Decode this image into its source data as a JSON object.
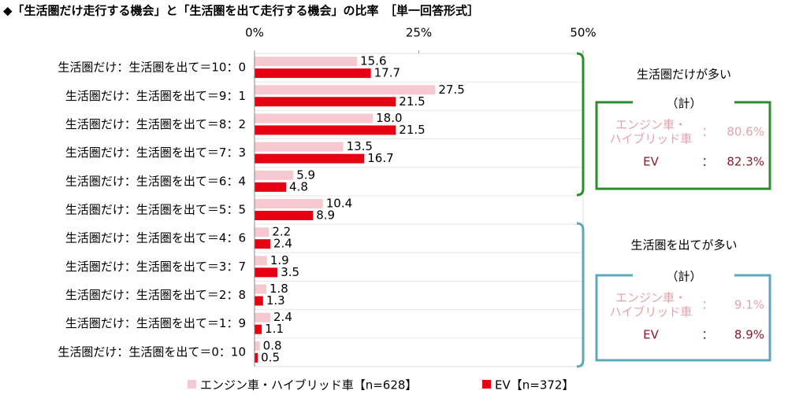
{
  "chart_data": {
    "type": "hbar",
    "title": "◆「生活圏だけ走行する機会」と「生活圏を出て走行する機会」の比率　［単一回答形式］",
    "categories": [
      "生活圏だけ：生活圏を出て＝10：0",
      "生活圏だけ：生活圏を出て＝9：1",
      "生活圏だけ：生活圏を出て＝8：2",
      "生活圏だけ：生活圏を出て＝7：3",
      "生活圏だけ：生活圏を出て＝6：4",
      "生活圏だけ：生活圏を出て＝5：5",
      "生活圏だけ：生活圏を出て＝4：6",
      "生活圏だけ：生活圏を出て＝3：7",
      "生活圏だけ：生活圏を出て＝2：8",
      "生活圏だけ：生活圏を出て＝1：9",
      "生活圏だけ：生活圏を出て＝0：10"
    ],
    "series": [
      {
        "name": "エンジン車・ハイブリッド車【n=628】",
        "color": "#f6c9d1",
        "values": [
          15.6,
          27.5,
          18.0,
          13.5,
          5.9,
          10.4,
          2.2,
          1.9,
          1.8,
          2.4,
          0.8
        ],
        "value_labels": [
          "15.6",
          "27.5",
          "18.0",
          "13.5",
          "5.9",
          "10.4",
          "2.2",
          "1.9",
          "1.8",
          "2.4",
          "0.8"
        ]
      },
      {
        "name": "EV【n=372】",
        "color": "#e60012",
        "values": [
          17.7,
          21.5,
          21.5,
          16.7,
          4.8,
          8.9,
          2.4,
          3.5,
          1.3,
          1.1,
          0.5
        ],
        "value_labels": [
          "17.7",
          "21.5",
          "21.5",
          "16.7",
          "4.8",
          "8.9",
          "2.4",
          "3.5",
          "1.3",
          "1.1",
          "0.5"
        ]
      }
    ],
    "xlim": [
      0,
      50
    ],
    "xticks": [
      {
        "value": 0,
        "label": "0%"
      },
      {
        "value": 25,
        "label": "25%"
      },
      {
        "value": 50,
        "label": "50%"
      }
    ],
    "summaries": [
      {
        "heading": "生活圏だけが多い",
        "sub": "（計）",
        "color": "#2e8b2e",
        "rows": [
          {
            "label": [
              "エンジン車・",
              "ハイブリッド車"
            ],
            "sep": "：",
            "value": "80.6%"
          },
          {
            "label": [
              "EV"
            ],
            "sep": "：",
            "value": "82.3%"
          }
        ]
      },
      {
        "heading": "生活圏を出てが多い",
        "sub": "（計）",
        "color": "#5fa8b8",
        "rows": [
          {
            "label": [
              "エンジン車・",
              "ハイブリッド車"
            ],
            "sep": "：",
            "value": "9.1%"
          },
          {
            "label": [
              "EV"
            ],
            "sep": "：",
            "value": "8.9%"
          }
        ]
      }
    ]
  }
}
